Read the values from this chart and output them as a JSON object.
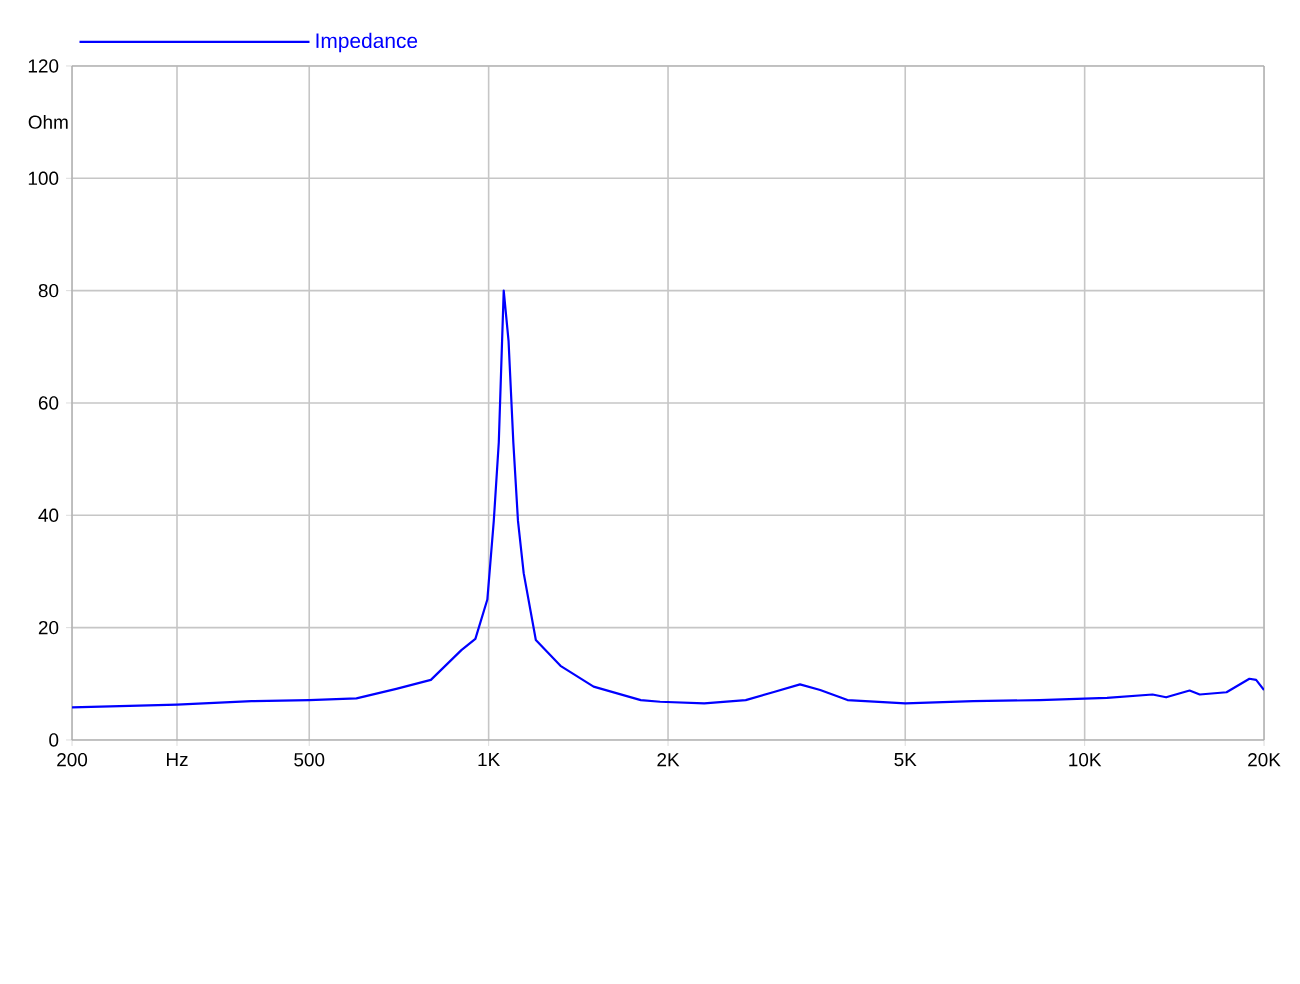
{
  "chart_data": {
    "type": "line",
    "log": "x",
    "grid": true,
    "legend": "top left",
    "ylabel": "Ohm",
    "xlim": [
      200,
      20000
    ],
    "ylim": [
      0,
      120
    ],
    "xticks": [
      200,
      {
        "value": 300,
        "label": "Hz"
      },
      500,
      {
        "value": 1000,
        "label": "1K"
      },
      {
        "value": 2000,
        "label": "2K"
      },
      {
        "value": 5000,
        "label": "5K"
      },
      {
        "value": 10000,
        "label": "10K"
      },
      {
        "value": 20000,
        "label": "20K"
      }
    ],
    "yticks": [
      0,
      20,
      40,
      60,
      80,
      100,
      120
    ],
    "x": [
      200,
      300,
      400,
      500,
      600,
      700,
      800,
      900,
      950,
      995,
      1020,
      1040,
      1060,
      1080,
      1100,
      1120,
      1145,
      1200,
      1320,
      1500,
      1800,
      1940,
      2300,
      2700,
      3000,
      3330,
      3600,
      4000,
      5000,
      6500,
      8400,
      10900,
      13000,
      13700,
      15000,
      15600,
      17300,
      18900,
      19400,
      20000
    ],
    "series": [
      {
        "name": "Impedance",
        "color": "#0000ff",
        "values": [
          5.8,
          6.3,
          6.9,
          7.1,
          7.4,
          9.1,
          10.7,
          16,
          18,
          25,
          39,
          53,
          80,
          71,
          53,
          39,
          29.7,
          17.8,
          13.2,
          9.5,
          7.1,
          6.8,
          6.5,
          7.1,
          8.5,
          9.9,
          8.9,
          7.1,
          6.5,
          6.9,
          7.1,
          7.5,
          8.1,
          7.6,
          8.8,
          8.1,
          8.5,
          10.9,
          10.7,
          8.9
        ]
      }
    ]
  }
}
